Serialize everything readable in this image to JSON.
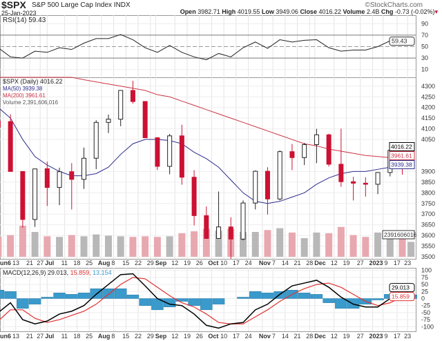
{
  "header": {
    "symbol": "$SPX",
    "name": "S&P 500 Large Cap Index",
    "exchange": "INDX",
    "date": "25-Jan-2023",
    "source": "©StockCharts.com",
    "open_label": "Open",
    "open": "3982.71",
    "high_label": "High",
    "high": "4019.55",
    "low_label": "Low",
    "low": "3949.06",
    "close_label": "Close",
    "close": "4016.22",
    "volume_label": "Volume",
    "volume": "2.4B",
    "chg_label": "Chg",
    "chg": "-0.73 (-0.02%)"
  },
  "chart_data": [
    {
      "type": "line",
      "panel": "rsi",
      "legend": "RSI(14) 59.43",
      "last_label": "59.43",
      "yticks": [
        90,
        70,
        50,
        30,
        10
      ],
      "ylim": [
        0,
        100
      ],
      "bands": [
        30,
        70
      ]
    },
    {
      "type": "candlestick",
      "panel": "price",
      "legend": {
        "price": "$SPX (Daily) 4016.22",
        "ma50": "MA(50) 3939.38",
        "ma200": "MA(200) 3961.61",
        "volume": "Volume 2,391,606,016"
      },
      "last_labels": {
        "price": "4016.22",
        "ma200": "3961.61",
        "ma50": "3939.38",
        "volume": "2391606016"
      },
      "ylim": [
        3480,
        4340
      ],
      "yticks": [
        4300,
        4250,
        4200,
        4150,
        4100,
        4050,
        3900,
        3850,
        3800,
        3750,
        3700,
        3650,
        3600,
        3550,
        3500
      ],
      "colors": {
        "ma50": "#2b2b8c",
        "ma200": "#cc3344",
        "down": "#cc1133",
        "up": "#ffffff",
        "vol_up": "#b8b8b8",
        "vol_down": "#e8a8b0"
      },
      "columns": [
        "date",
        "open",
        "high",
        "low",
        "close",
        "volume_B",
        "ma50",
        "ma200",
        "rsi",
        "macd",
        "signal",
        "hist"
      ],
      "rows": [
        [
          "2022-06-03",
          4137,
          4177,
          4074,
          4108,
          3.2,
          4200,
          4450,
          48,
          -50,
          -80,
          30
        ],
        [
          "2022-06-10",
          4134,
          4168,
          3900,
          3900,
          3.5,
          4150,
          4440,
          32,
          -15,
          -40,
          25
        ],
        [
          "2022-06-17",
          3900,
          3900,
          3636,
          3675,
          5.0,
          4050,
          4420,
          30,
          -75,
          -40,
          -35
        ],
        [
          "2022-06-24",
          3675,
          3913,
          3640,
          3912,
          4.0,
          3970,
          4400,
          42,
          -90,
          -70,
          -20
        ],
        [
          "2022-07-01",
          3913,
          3946,
          3738,
          3825,
          3.3,
          3930,
          4380,
          40,
          -80,
          -85,
          5
        ],
        [
          "2022-07-08",
          3825,
          3918,
          3742,
          3899,
          3.2,
          3900,
          4360,
          48,
          -55,
          -75,
          20
        ],
        [
          "2022-07-15",
          3899,
          3939,
          3722,
          3863,
          3.5,
          3880,
          4345,
          45,
          -45,
          -60,
          15
        ],
        [
          "2022-07-22",
          3863,
          4012,
          3818,
          3962,
          3.3,
          3880,
          4330,
          56,
          -25,
          -45,
          20
        ],
        [
          "2022-07-29",
          3962,
          4140,
          3911,
          4130,
          3.6,
          3890,
          4320,
          64,
          15,
          -20,
          35
        ],
        [
          "2022-08-05",
          4130,
          4167,
          4080,
          4145,
          3.4,
          3920,
          4310,
          64,
          50,
          15,
          35
        ],
        [
          "2022-08-12",
          4145,
          4280,
          4112,
          4280,
          3.3,
          3980,
          4300,
          71,
          85,
          50,
          35
        ],
        [
          "2022-08-19",
          4280,
          4325,
          4218,
          4228,
          3.2,
          4030,
          4290,
          62,
          88,
          75,
          13
        ],
        [
          "2022-08-26",
          4228,
          4230,
          4057,
          4058,
          3.3,
          4050,
          4280,
          48,
          45,
          70,
          -25
        ],
        [
          "2022-09-02",
          4058,
          4061,
          3907,
          3924,
          3.2,
          4050,
          4260,
          40,
          0,
          40,
          -40
        ],
        [
          "2022-09-09",
          3924,
          4076,
          3887,
          4067,
          3.3,
          4045,
          4250,
          52,
          -20,
          10,
          -30
        ],
        [
          "2022-09-16",
          4067,
          4119,
          3838,
          3873,
          3.8,
          4030,
          4230,
          40,
          -25,
          -15,
          -10
        ],
        [
          "2022-09-23",
          3873,
          3906,
          3647,
          3693,
          4.1,
          3990,
          4210,
          32,
          -55,
          -30,
          -25
        ],
        [
          "2022-09-30",
          3693,
          3736,
          3584,
          3586,
          4.5,
          3960,
          4190,
          27,
          -95,
          -55,
          -40
        ],
        [
          "2022-10-07",
          3586,
          3806,
          3584,
          3640,
          4.2,
          3920,
          4170,
          38,
          -105,
          -85,
          -20
        ],
        [
          "2022-10-14",
          3640,
          3685,
          3491,
          3583,
          4.5,
          3860,
          4150,
          32,
          -90,
          -90,
          0
        ],
        [
          "2022-10-21",
          3583,
          3764,
          3577,
          3752,
          4.0,
          3800,
          4130,
          48,
          -85,
          -90,
          5
        ],
        [
          "2022-10-28",
          3752,
          3905,
          3722,
          3901,
          4.0,
          3760,
          4110,
          58,
          -40,
          -65,
          25
        ],
        [
          "2022-11-04",
          3901,
          3920,
          3698,
          3771,
          4.3,
          3750,
          4090,
          47,
          -20,
          -40,
          20
        ],
        [
          "2022-11-11",
          3771,
          3999,
          3764,
          3993,
          4.6,
          3760,
          4070,
          62,
          15,
          -10,
          25
        ],
        [
          "2022-11-18",
          3993,
          4029,
          3906,
          3965,
          3.9,
          3780,
          4050,
          58,
          45,
          15,
          30
        ],
        [
          "2022-11-25",
          3965,
          4034,
          3930,
          4026,
          3.0,
          3800,
          4030,
          61,
          55,
          35,
          20
        ],
        [
          "2022-12-02",
          4026,
          4100,
          3939,
          4072,
          3.9,
          3840,
          4020,
          62,
          65,
          50,
          15
        ],
        [
          "2022-12-09",
          4072,
          4077,
          3923,
          3934,
          3.8,
          3870,
          4005,
          48,
          40,
          55,
          -15
        ],
        [
          "2022-12-16",
          3934,
          4101,
          3828,
          3852,
          4.8,
          3890,
          3995,
          42,
          5,
          40,
          -35
        ],
        [
          "2022-12-23",
          3852,
          3875,
          3764,
          3845,
          3.5,
          3900,
          3985,
          44,
          -20,
          15,
          -35
        ],
        [
          "2022-12-30",
          3845,
          3873,
          3782,
          3840,
          3.2,
          3900,
          3975,
          44,
          -30,
          -10,
          -20
        ],
        [
          "2023-01-06",
          3840,
          3895,
          3794,
          3895,
          3.9,
          3910,
          3970,
          50,
          -30,
          -25,
          -5
        ],
        [
          "2023-01-13",
          3895,
          4003,
          3877,
          3999,
          4.1,
          3920,
          3965,
          60,
          0,
          -15,
          15
        ],
        [
          "2023-01-20",
          3999,
          4015,
          3885,
          3973,
          4.0,
          3930,
          3962,
          55,
          15,
          5,
          10
        ],
        [
          "2023-01-25",
          3983,
          4020,
          3949,
          4016,
          2.4,
          3939.38,
          3961.61,
          59.43,
          29.013,
          15.859,
          13.154
        ]
      ]
    },
    {
      "type": "line+bar",
      "panel": "macd",
      "legend": {
        "name": "MACD(12,26,9)",
        "macd": "29.013,",
        "signal": "15.859,",
        "hist": "13.154"
      },
      "last_labels": {
        "macd": "29.013",
        "signal": "15.859"
      },
      "yticks": [
        100,
        75,
        50,
        25,
        0,
        -25,
        -50,
        -75,
        -100
      ],
      "ylim": [
        -115,
        105
      ],
      "colors": {
        "macd": "#000000",
        "signal": "#e03030",
        "hist": "#3a9acb"
      }
    }
  ],
  "xaxis": {
    "labels": [
      [
        "un6",
        "2022-06-06"
      ],
      [
        "13",
        "2022-06-13"
      ],
      [
        "21",
        "2022-06-21"
      ],
      [
        "27",
        "2022-06-27"
      ],
      [
        "Jul",
        "2022-07-01"
      ],
      [
        "11",
        "2022-07-11"
      ],
      [
        "18",
        "2022-07-18"
      ],
      [
        "25",
        "2022-07-25"
      ],
      [
        "Aug",
        "2022-08-01"
      ],
      [
        "8",
        "2022-08-08"
      ],
      [
        "15",
        "2022-08-15"
      ],
      [
        "22",
        "2022-08-22"
      ],
      [
        "29",
        "2022-08-29"
      ],
      [
        "Sep",
        "2022-09-01"
      ],
      [
        "12",
        "2022-09-12"
      ],
      [
        "19",
        "2022-09-19"
      ],
      [
        "26",
        "2022-09-26"
      ],
      [
        "Oct",
        "2022-10-03"
      ],
      [
        "10",
        "2022-10-10"
      ],
      [
        "17",
        "2022-10-17"
      ],
      [
        "24",
        "2022-10-24"
      ],
      [
        "Nov",
        "2022-11-01"
      ],
      [
        "7",
        "2022-11-07"
      ],
      [
        "14",
        "2022-11-14"
      ],
      [
        "21",
        "2022-11-21"
      ],
      [
        "28",
        "2022-11-28"
      ],
      [
        "Dec",
        "2022-12-01"
      ],
      [
        "12",
        "2022-12-12"
      ],
      [
        "19",
        "2022-12-19"
      ],
      [
        "27",
        "2022-12-27"
      ],
      [
        "2023",
        "2023-01-03"
      ],
      [
        "9",
        "2023-01-09"
      ],
      [
        "17",
        "2023-01-17"
      ],
      [
        "23",
        "2023-01-23"
      ]
    ]
  }
}
